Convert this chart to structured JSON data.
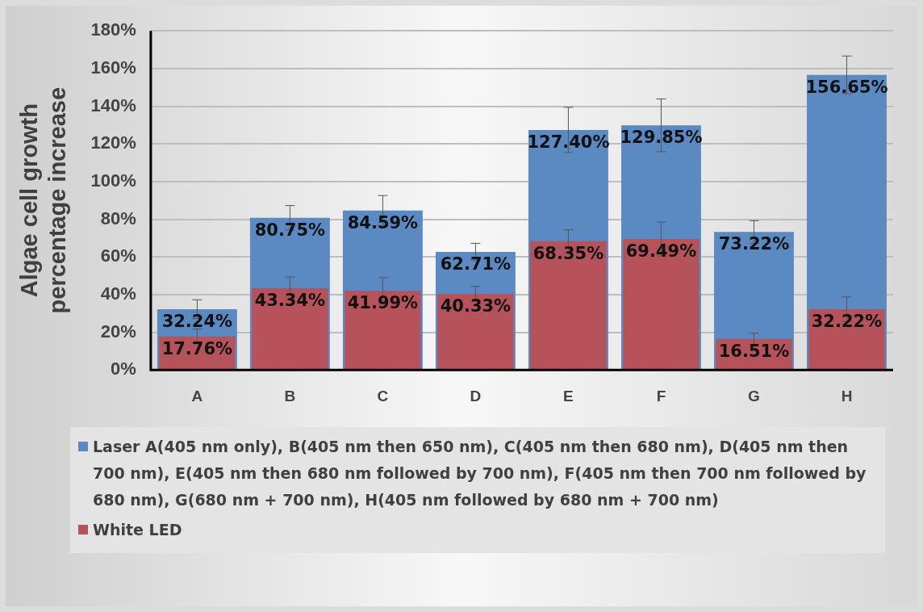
{
  "chart_data": {
    "type": "bar",
    "ylabel": "Algae cell growth percentage increase",
    "categories": [
      "A",
      "B",
      "C",
      "D",
      "E",
      "F",
      "G",
      "H"
    ],
    "series": [
      {
        "name": "Laser A(405 nm only), B(405 nm then 650 nm), C(405 nm then 680 nm), D(405 nm then 700 nm), E(405 nm then 680 nm followed by 700 nm), F(405 nm then 700 nm followed by 680 nm), G(680 nm + 700 nm), H(405 nm followed by 680 nm + 700 nm)",
        "color": "#5b8ac3",
        "values": [
          32.24,
          80.75,
          84.59,
          62.71,
          127.4,
          129.85,
          73.22,
          156.65
        ],
        "value_labels": [
          "32.24%",
          "80.75%",
          "84.59%",
          "62.71%",
          "127.40%",
          "129.85%",
          "73.22%",
          "156.65%"
        ],
        "errors": [
          5,
          6.5,
          8,
          4.5,
          12,
          14,
          6,
          10
        ]
      },
      {
        "name": "White LED",
        "color": "#b5525a",
        "values": [
          17.76,
          43.34,
          41.99,
          40.33,
          68.35,
          69.49,
          16.51,
          32.22
        ],
        "value_labels": [
          "17.76%",
          "43.34%",
          "41.99%",
          "40.33%",
          "68.35%",
          "69.49%",
          "16.51%",
          "32.22%"
        ],
        "errors": [
          4,
          6,
          7,
          4,
          6,
          9,
          3,
          6.5
        ]
      }
    ],
    "ylim": [
      0,
      180
    ],
    "yticks": [
      {
        "value": 0,
        "label": "0%"
      },
      {
        "value": 20,
        "label": "20%"
      },
      {
        "value": 40,
        "label": "40%"
      },
      {
        "value": 60,
        "label": "60%"
      },
      {
        "value": 80,
        "label": "80%"
      },
      {
        "value": 100,
        "label": "100%"
      },
      {
        "value": 120,
        "label": "120%"
      },
      {
        "value": 140,
        "label": "140%"
      },
      {
        "value": 160,
        "label": "160%"
      },
      {
        "value": 180,
        "label": "180%"
      }
    ],
    "grid": "y",
    "legend": "bottom"
  }
}
